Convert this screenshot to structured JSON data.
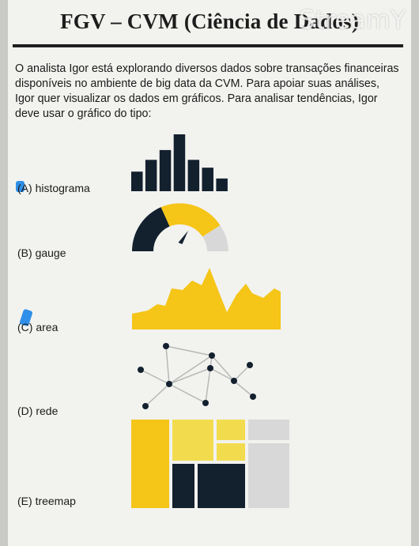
{
  "header": {
    "title": "FGV – CVM (Ciência de Dados)",
    "watermark": "StreamY"
  },
  "question": {
    "text": "O analista Igor está explorando diversos dados sobre transações financeiras disponíveis no ambiente de big data da CVM. Para apoiar suas análises, Igor quer visualizar os dados em gráficos. Para analisar tendências, Igor deve usar o gráfico do tipo:"
  },
  "options": [
    {
      "letter": "(A)",
      "text": "histograma",
      "icon": "histogram-icon"
    },
    {
      "letter": "(B)",
      "text": "gauge",
      "icon": "gauge-icon"
    },
    {
      "letter": "(C)",
      "text": "area",
      "icon": "area-chart-icon"
    },
    {
      "letter": "(D)",
      "text": "rede",
      "icon": "network-icon"
    },
    {
      "letter": "(E)",
      "text": "treemap",
      "icon": "treemap-icon"
    }
  ],
  "histogram": {
    "values": [
      2,
      3.2,
      4.2,
      5.8,
      3.2,
      2.4,
      1.3
    ]
  },
  "colors": {
    "navy": "#13202e",
    "yellow": "#f5c518",
    "light_yellow": "#f2dc4e",
    "gray": "#d8d8d8",
    "highlight": "#2f8fe8"
  }
}
